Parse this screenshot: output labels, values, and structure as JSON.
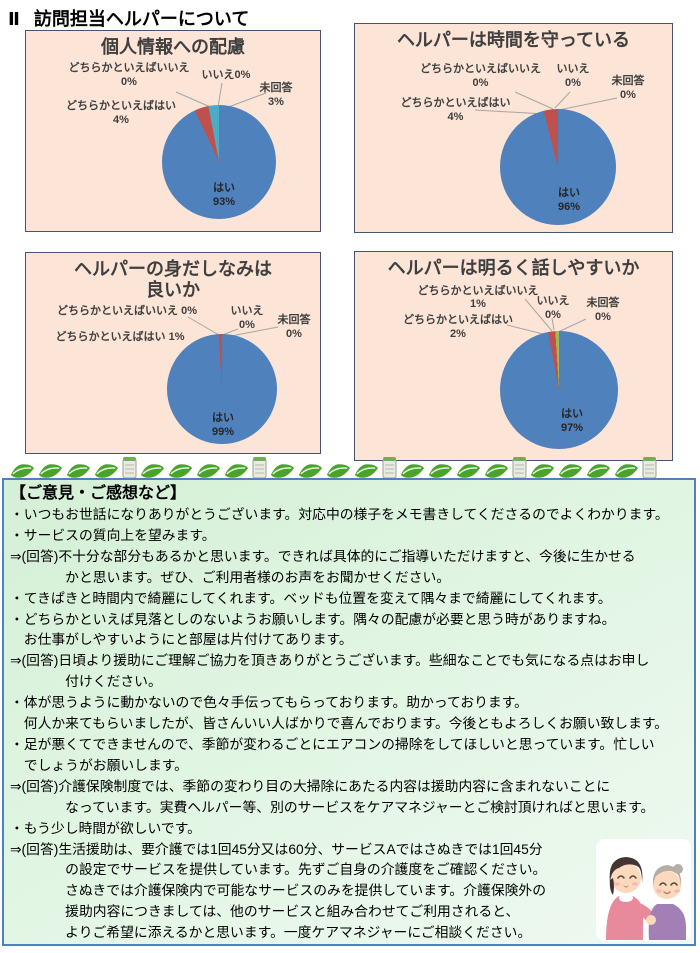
{
  "page": {
    "section_number": "Ⅱ",
    "section_title": "訪問担当ヘルパーについて"
  },
  "colors": {
    "pie_yes": "#4F81BD",
    "pie_rather_yes": "#C0504D",
    "pie_rather_no": "#9BBB59",
    "pie_no": "#8064A2",
    "pie_no_answer": "#4BACC6",
    "chart_panel_bg": "#FCE4D6",
    "chart_panel_border": "#44546A",
    "comments_bg": "#D9F2DB",
    "comments_border": "#4F81BD",
    "heading_underline": "#4472C4"
  },
  "chart_data": [
    {
      "type": "pie",
      "title": "個人情報への配慮",
      "categories": [
        "はい",
        "どちらかといえばはい",
        "どちらかといえばいいえ",
        "いいえ",
        "未回答"
      ],
      "values": [
        93,
        4,
        0,
        0,
        3
      ],
      "colors": [
        "#4F81BD",
        "#C0504D",
        "#9BBB59",
        "#8064A2",
        "#4BACC6"
      ],
      "legend": "none",
      "start_angle_deg": 0,
      "direction": "clockwise"
    },
    {
      "type": "pie",
      "title": "ヘルパーは時間を守っている",
      "categories": [
        "はい",
        "どちらかといえばはい",
        "どちらかといえばいいえ",
        "いいえ",
        "未回答"
      ],
      "values": [
        96,
        4,
        0,
        0,
        0
      ],
      "colors": [
        "#4F81BD",
        "#C0504D",
        "#9BBB59",
        "#8064A2",
        "#4BACC6"
      ],
      "legend": "none",
      "start_angle_deg": 0,
      "direction": "clockwise"
    },
    {
      "type": "pie",
      "title": "ヘルパーの身だしなみは良いか",
      "categories": [
        "はい",
        "どちらかといえばはい",
        "どちらかといえばいいえ",
        "いいえ",
        "未回答"
      ],
      "values": [
        99,
        1,
        0,
        0,
        0
      ],
      "colors": [
        "#4F81BD",
        "#C0504D",
        "#9BBB59",
        "#8064A2",
        "#4BACC6"
      ],
      "legend": "none",
      "start_angle_deg": 0,
      "direction": "clockwise"
    },
    {
      "type": "pie",
      "title": "ヘルパーは明るく話しやすいか",
      "categories": [
        "はい",
        "どちらかといえばはい",
        "どちらかといえばいいえ",
        "いいえ",
        "未回答"
      ],
      "values": [
        97,
        2,
        1,
        0,
        0
      ],
      "colors": [
        "#4F81BD",
        "#C0504D",
        "#9BBB59",
        "#8064A2",
        "#4BACC6"
      ],
      "legend": "none",
      "start_angle_deg": 0,
      "direction": "clockwise"
    }
  ],
  "charts": [
    {
      "title": "個人情報への配慮",
      "labels": [
        "どちらかといえばいいえ\n0%",
        "いいえ0%",
        "未回答\n3%",
        "どちらかといえばはい\n4%",
        "はい\n93%"
      ]
    },
    {
      "title": "ヘルパーは時間を守っている",
      "labels": [
        "どちらかといえばいいえ\n0%",
        "いいえ\n0%",
        "未回答\n0%",
        "どちらかといえばはい\n4%",
        "はい\n96%"
      ]
    },
    {
      "title": "ヘルパーの身だしなみは\n良いか",
      "labels": [
        "どちらかといえばいいえ 0%",
        "いいえ\n0%",
        "未回答\n0%",
        "どちらかといえばはい 1%",
        "はい\n99%"
      ]
    },
    {
      "title": "ヘルパーは明るく話しやすいか",
      "labels": [
        "どちらかといえばいいえ\n1%",
        "いいえ\n0%",
        "未回答\n0%",
        "どちらかといえばはい\n2%",
        "はい\n97%"
      ]
    }
  ],
  "divider": {
    "pattern": [
      "leaf-icon",
      "leaf-icon",
      "leaf-icon",
      "leaf-icon",
      "barrel-icon"
    ],
    "repeat": 5
  },
  "comments": {
    "header": "【ご意見・ご感想など】",
    "lines": [
      "・いつもお世話になりありがとうございます。対応中の様子をメモ書きしてくださるのでよくわかります。",
      "・サービスの質向上を望みます。",
      "⇒(回答)不十分な部分もあるかと思います。できれば具体的にご指導いただけますと、今後に生かせる",
      "　　　　かと思います。ぜひ、ご利用者様のお声をお聞かせください。",
      "・てきぱきと時間内で綺麗にしてくれます。ベッドも位置を変えて隅々まで綺麗にしてくれます。",
      "・どちらかといえば見落としのないようお願いします。隅々の配慮が必要と思う時がありますね。",
      "　お仕事がしやすいようにと部屋は片付けてあります。",
      "⇒(回答)日頃より援助にご理解ご協力を頂きありがとうございます。些細なことでも気になる点はお申し",
      "　　　　付けください。",
      "・体が思うように動かないので色々手伝ってもらっております。助かっております。",
      "　何人か来てもらいましたが、皆さんいい人ばかりで喜んでおります。今後ともよろしくお願い致します。",
      "・足が悪くてできませんので、季節が変わるごとにエアコンの掃除をしてほしいと思っています。忙しい",
      "　でしょうがお願いします。",
      "⇒(回答)介護保険制度では、季節の変わり目の大掃除にあたる内容は援助内容に含まれないことに",
      "　　　　なっています。実費ヘルパー等、別のサービスをケアマネジャーとご検討頂ければと思います。",
      "・もう少し時間が欲しいです。",
      "⇒(回答)生活援助は、要介護では1回45分又は60分、サービスAではさぬきでは1回45分",
      "　　　　の設定でサービスを提供しています。先ずご自身の介護度をご確認ください。",
      "　　　　さぬきでは介護保険内で可能なサービスのみを提供しています。介護保険外の",
      "　　　　援助内容につきましては、他のサービスと組み合わせてご利用されると、",
      "　　　　よりご希望に添えるかと思います。一度ケアマネジャーにご相談ください。"
    ]
  }
}
